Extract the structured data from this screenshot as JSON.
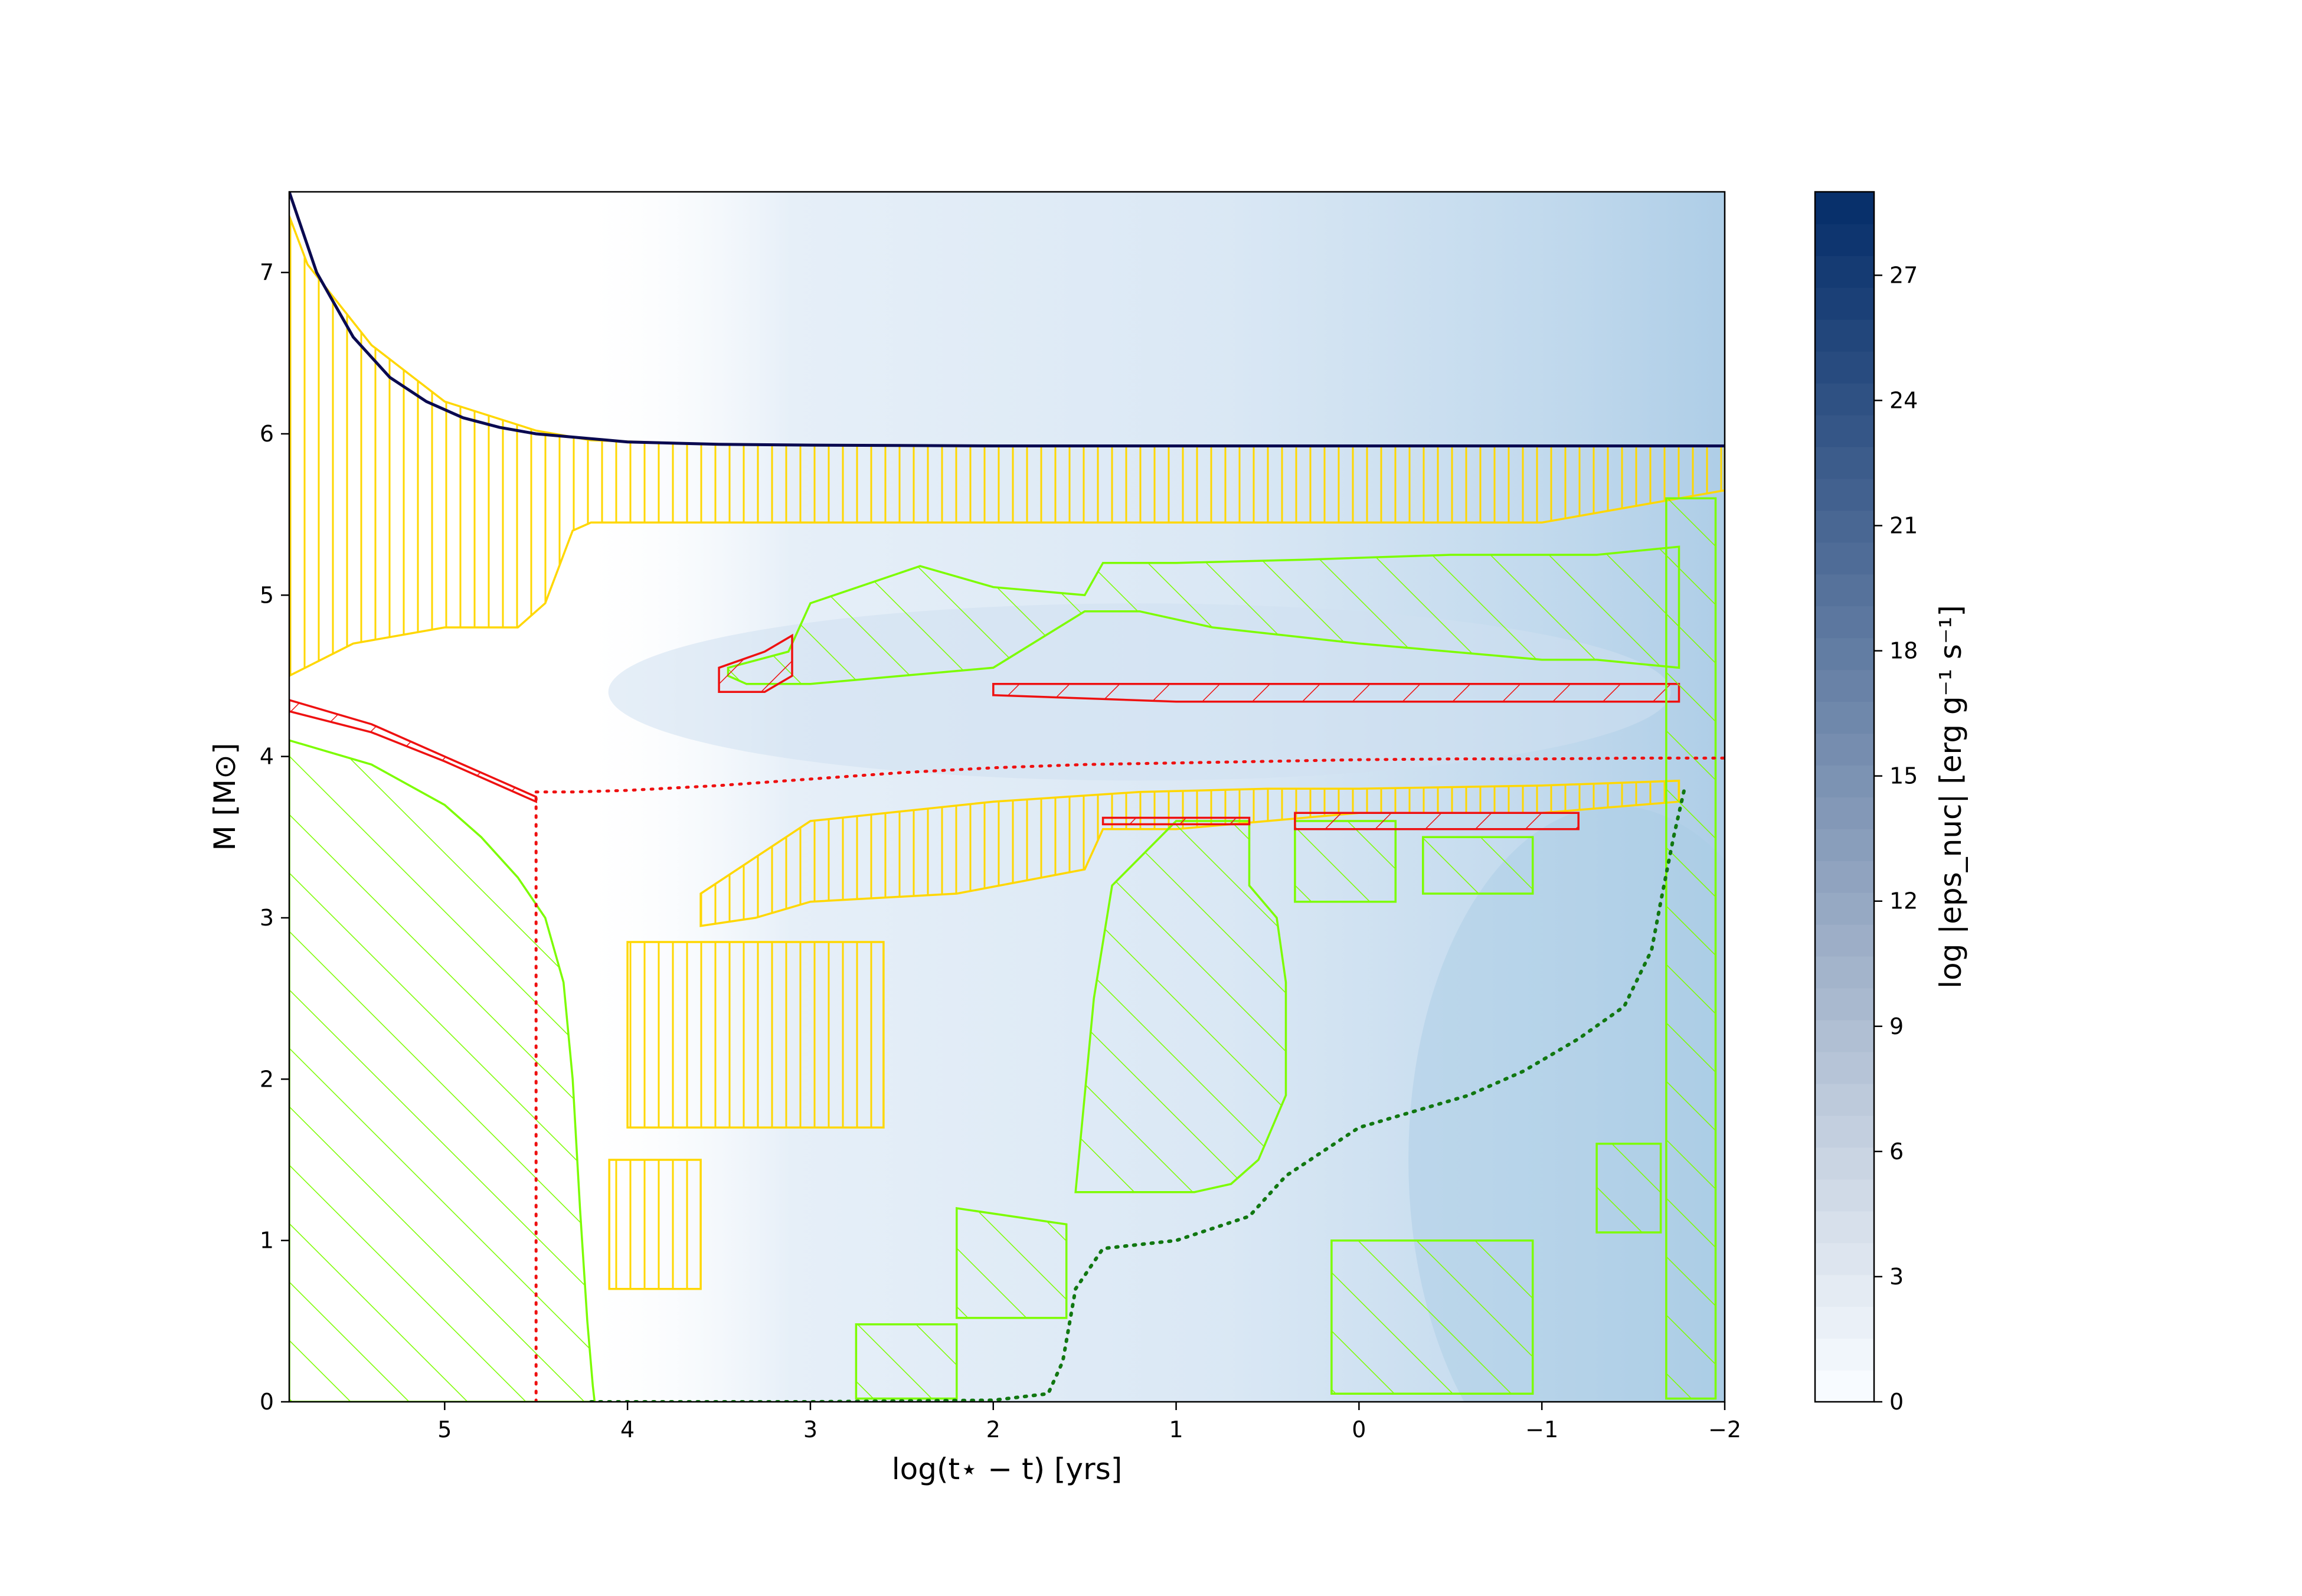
{
  "chart_data": {
    "type": "area",
    "subtype": "kippenhahn",
    "xlabel": "log(t⋆ − t) [yrs]",
    "ylabel": "M  [M⊙]",
    "xlim": [
      5.85,
      -2.0
    ],
    "ylim": [
      0,
      7.5
    ],
    "x_ticks": [
      5,
      4,
      3,
      2,
      1,
      0,
      -1,
      -2
    ],
    "x_tick_labels": [
      "5",
      "4",
      "3",
      "2",
      "1",
      "0",
      "−1",
      "−2"
    ],
    "y_ticks": [
      0,
      1,
      2,
      3,
      4,
      5,
      6,
      7
    ],
    "y_tick_labels": [
      "0",
      "1",
      "2",
      "3",
      "4",
      "5",
      "6",
      "7"
    ],
    "grid": false,
    "colorbar": {
      "label": "log |eps_nuc| [erg g⁻¹ s⁻¹]",
      "min": 0,
      "max": 29,
      "ticks": [
        0,
        3,
        6,
        9,
        12,
        15,
        18,
        21,
        24,
        27
      ],
      "tick_labels": [
        "0",
        "3",
        "6",
        "9",
        "12",
        "15",
        "18",
        "21",
        "24",
        "27"
      ],
      "cmap_low": "#f7fbff",
      "cmap_high": "#08306b"
    },
    "colors": {
      "total_mass": "#0a0a50",
      "convection": "#7cfc00",
      "overshoot": "#ffd700",
      "thermohaline": "#ee1111",
      "he_core": "#ee1111",
      "co_core": "#117711",
      "semiconvection": "#800080"
    },
    "series": [
      {
        "id": "total_mass",
        "style": "solid",
        "x": [
          5.85,
          5.7,
          5.5,
          5.3,
          5.1,
          4.9,
          4.7,
          4.5,
          4.2,
          4.0,
          3.5,
          3.0,
          2.0,
          1.0,
          0.0,
          -1.0,
          -2.0
        ],
        "y": [
          7.5,
          7.0,
          6.6,
          6.35,
          6.2,
          6.1,
          6.04,
          6.0,
          5.97,
          5.95,
          5.935,
          5.93,
          5.925,
          5.925,
          5.925,
          5.925,
          5.925
        ]
      },
      {
        "id": "he_core_boundary",
        "style": "dotted",
        "x": [
          4.5,
          4.3,
          4.0,
          3.5,
          3.0,
          2.5,
          2.0,
          1.5,
          1.0,
          0.5,
          0.0,
          -0.5,
          -1.0,
          -1.5,
          -2.0
        ],
        "y": [
          3.78,
          3.78,
          3.79,
          3.82,
          3.86,
          3.9,
          3.93,
          3.95,
          3.96,
          3.97,
          3.98,
          3.985,
          3.985,
          3.99,
          3.99
        ]
      },
      {
        "id": "he_core_vertical",
        "style": "dotted",
        "x": [
          4.5,
          4.5
        ],
        "y": [
          0.0,
          3.78
        ]
      },
      {
        "id": "co_core_boundary",
        "style": "dotted",
        "x": [
          4.2,
          3.0,
          2.0,
          1.7,
          1.62,
          1.55,
          1.4,
          1.0,
          0.6,
          0.4,
          0.2,
          0.0,
          -0.3,
          -0.6,
          -0.9,
          -1.2,
          -1.45,
          -1.6,
          -1.65,
          -1.72,
          -1.78
        ],
        "y": [
          0.0,
          0.0,
          0.01,
          0.05,
          0.25,
          0.7,
          0.95,
          1.0,
          1.15,
          1.4,
          1.55,
          1.7,
          1.8,
          1.9,
          2.05,
          2.25,
          2.45,
          2.8,
          3.1,
          3.5,
          3.8
        ]
      }
    ],
    "regions": [
      {
        "id": "envelope-overshoot",
        "kind": "overshoot",
        "x": [
          5.85,
          5.75,
          5.4,
          5.0,
          4.5,
          4.3,
          4.2,
          3.5,
          3.0,
          2.0,
          1.0,
          0.0,
          -1.0,
          -2.0,
          -2.0,
          -1.0,
          0.0,
          1.0,
          2.0,
          3.0,
          3.5,
          4.0,
          4.2,
          4.3,
          4.45,
          4.6,
          5.0,
          5.5,
          5.85
        ],
        "y": [
          7.35,
          7.05,
          6.55,
          6.2,
          6.02,
          5.98,
          5.96,
          5.935,
          5.93,
          5.925,
          5.925,
          5.925,
          5.925,
          5.925,
          5.65,
          5.45,
          5.45,
          5.45,
          5.45,
          5.45,
          5.45,
          5.45,
          5.45,
          5.4,
          4.95,
          4.8,
          4.8,
          4.7,
          4.5
        ]
      },
      {
        "id": "core-convection-ms",
        "kind": "convection",
        "x": [
          5.85,
          5.85,
          5.4,
          5.0,
          4.8,
          4.6,
          4.45,
          4.35,
          4.3,
          4.26,
          4.22,
          4.19,
          4.18
        ],
        "y": [
          0.0,
          4.1,
          3.95,
          3.7,
          3.5,
          3.25,
          3.0,
          2.6,
          2.0,
          1.2,
          0.5,
          0.1,
          0.0
        ]
      },
      {
        "id": "thermohaline-ms",
        "kind": "thermohaline",
        "x": [
          5.85,
          5.4,
          5.0,
          4.7,
          4.5,
          4.5,
          4.7,
          5.0,
          5.4,
          5.85
        ],
        "y": [
          4.35,
          4.2,
          4.0,
          3.85,
          3.75,
          3.72,
          3.82,
          3.97,
          4.15,
          4.28
        ]
      },
      {
        "id": "upper-shell-convection",
        "kind": "convection",
        "x": [
          3.35,
          3.45,
          3.45,
          3.12,
          3.0,
          2.4,
          2.0,
          1.5,
          1.4,
          1.0,
          0.3,
          -0.5,
          -1.0,
          -1.3,
          -1.75,
          -1.75,
          -1.3,
          -1.0,
          0.0,
          0.8,
          1.2,
          1.5,
          2.0,
          2.5,
          3.0,
          3.2
        ],
        "y": [
          4.45,
          4.5,
          4.55,
          4.65,
          4.95,
          5.18,
          5.05,
          5.0,
          5.2,
          5.2,
          5.22,
          5.25,
          5.25,
          5.25,
          5.3,
          4.55,
          4.6,
          4.6,
          4.7,
          4.8,
          4.9,
          4.9,
          4.55,
          4.5,
          4.45,
          4.45
        ]
      },
      {
        "id": "upper-thermohaline",
        "kind": "thermohaline",
        "x": [
          3.5,
          3.25,
          3.1,
          3.1,
          3.25,
          3.5
        ],
        "y": [
          4.4,
          4.4,
          4.5,
          4.75,
          4.65,
          4.55
        ]
      },
      {
        "id": "mid-thermohaline",
        "kind": "thermohaline",
        "x": [
          2.0,
          1.0,
          0.0,
          -1.0,
          -1.75,
          -1.75,
          -1.0,
          0.0,
          1.0,
          2.0
        ],
        "y": [
          4.38,
          4.34,
          4.34,
          4.34,
          4.34,
          4.45,
          4.45,
          4.45,
          4.45,
          4.45
        ]
      },
      {
        "id": "lower-envelope-overshoot",
        "kind": "overshoot",
        "x": [
          3.6,
          3.0,
          2.0,
          1.2,
          0.5,
          0.0,
          -1.0,
          -1.75,
          -1.75,
          -1.0,
          0.0,
          0.5,
          1.0,
          1.4,
          1.5,
          2.2,
          3.0,
          3.3,
          3.6
        ],
        "y": [
          3.15,
          3.6,
          3.72,
          3.78,
          3.8,
          3.8,
          3.82,
          3.85,
          3.72,
          3.65,
          3.65,
          3.6,
          3.55,
          3.55,
          3.3,
          3.15,
          3.1,
          3.0,
          2.95
        ]
      },
      {
        "id": "he-burning-convection",
        "kind": "convection",
        "x": [
          1.55,
          1.45,
          1.35,
          1.0,
          0.6,
          0.6,
          0.45,
          0.4,
          0.4,
          0.55,
          0.7,
          0.9,
          1.2,
          1.5
        ],
        "y": [
          1.3,
          2.5,
          3.2,
          3.6,
          3.6,
          3.2,
          3.0,
          2.6,
          1.9,
          1.5,
          1.35,
          1.3,
          1.3,
          1.3
        ]
      },
      {
        "id": "he-shell-conv-a",
        "kind": "convection",
        "x": [
          0.35,
          -0.2,
          -0.2,
          0.35
        ],
        "y": [
          3.1,
          3.1,
          3.6,
          3.6
        ]
      },
      {
        "id": "he-shell-conv-b",
        "kind": "convection",
        "x": [
          -0.35,
          -0.95,
          -0.95,
          -0.35
        ],
        "y": [
          3.15,
          3.15,
          3.5,
          3.5
        ]
      },
      {
        "id": "he-shell-thermo",
        "kind": "thermohaline",
        "x": [
          0.35,
          -1.2,
          -1.2,
          0.35
        ],
        "y": [
          3.55,
          3.55,
          3.65,
          3.65
        ]
      },
      {
        "id": "he-burning-thermo-top",
        "kind": "thermohaline",
        "x": [
          1.4,
          0.6,
          0.6,
          1.4
        ],
        "y": [
          3.58,
          3.58,
          3.62,
          3.62
        ]
      },
      {
        "id": "c-core-conv-1",
        "kind": "convection",
        "x": [
          2.2,
          1.6,
          1.6,
          2.2
        ],
        "y": [
          0.52,
          0.52,
          1.1,
          1.2
        ]
      },
      {
        "id": "c-core-conv-2",
        "kind": "convection",
        "x": [
          2.75,
          2.2,
          2.2,
          2.75
        ],
        "y": [
          0.02,
          0.02,
          0.48,
          0.48
        ]
      },
      {
        "id": "c-shell-conv-a",
        "kind": "convection",
        "x": [
          0.15,
          -0.95,
          -0.95,
          0.15
        ],
        "y": [
          0.05,
          0.05,
          1.0,
          1.0
        ]
      },
      {
        "id": "c-shell-conv-b",
        "kind": "convection",
        "x": [
          -1.3,
          -1.65,
          -1.65,
          -1.3
        ],
        "y": [
          1.05,
          1.05,
          1.6,
          1.6
        ]
      },
      {
        "id": "late-conv-column",
        "kind": "convection",
        "x": [
          -1.68,
          -1.95,
          -1.95,
          -1.68
        ],
        "y": [
          0.02,
          0.02,
          5.6,
          5.6
        ]
      },
      {
        "id": "mid-overshoot-bands",
        "kind": "overshoot",
        "x": [
          4.0,
          2.6,
          2.6,
          4.0
        ],
        "y": [
          1.7,
          1.7,
          2.85,
          2.85
        ]
      },
      {
        "id": "mid-overshoot-bands-2",
        "kind": "overshoot",
        "x": [
          4.1,
          3.6,
          3.6,
          4.1
        ],
        "y": [
          0.7,
          0.7,
          1.5,
          1.5
        ]
      }
    ]
  }
}
